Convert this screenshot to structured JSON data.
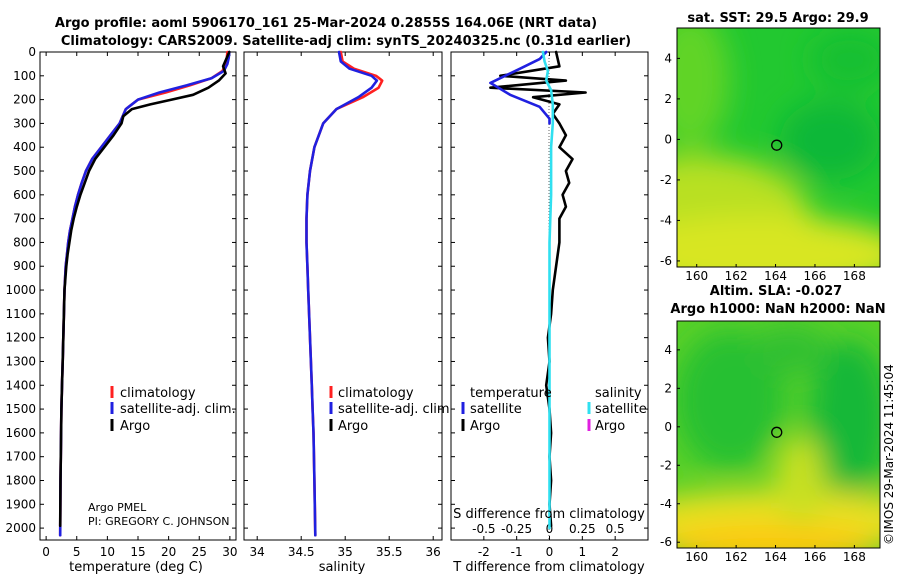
{
  "titles": {
    "line1": "Argo profile: aoml 5906170_161 25-Mar-2024 0.2855S 164.06E (NRT data)",
    "line2": "Climatology: CARS2009. Satellite-adj clim: synTS_20240325.nc (0.31d earlier)",
    "sst": "sat. SST: 29.5 Argo: 29.9",
    "sla1": "Altim. SLA: -0.027",
    "sla2": "Argo h1000: NaN h2000: NaN"
  },
  "credit": "©IMOS 29-Mar-2024 11:45:04",
  "pi_note": {
    "line1": "Argo PMEL",
    "line2": "PI: GREGORY C. JOHNSON"
  },
  "colors": {
    "climatology": "#ff2020",
    "satellite_adj": "#2020e0",
    "argo": "#000000",
    "sat_diff_cyan": "#30e0f0",
    "sat_diff_magenta": "#e020e0",
    "map_green": "#10c030",
    "map_yellow": "#e0e020",
    "map_orange": "#ffc000"
  },
  "legends": {
    "temperature_panel": [
      "climatology",
      "satellite-adj. clim.",
      "Argo"
    ],
    "salinity_panel": [
      "climatology",
      "satellite-adj. clim.",
      "Argo"
    ],
    "diff_panel": {
      "temp_header": "temperature",
      "sal_header": "salinity",
      "temp_items": [
        "satellite",
        "Argo"
      ],
      "sal_items": [
        "satellite",
        "Argo"
      ]
    }
  },
  "chart_data": [
    {
      "type": "line",
      "id": "temperature",
      "xlabel": "temperature (deg C)",
      "ylabel": "",
      "xlim": [
        -1,
        31
      ],
      "ylim": [
        2050,
        0
      ],
      "xticks": [
        0,
        5,
        10,
        15,
        20,
        25,
        30
      ],
      "yticks": [
        0,
        100,
        200,
        300,
        400,
        500,
        600,
        700,
        800,
        900,
        1000,
        1100,
        1200,
        1300,
        1400,
        1500,
        1600,
        1700,
        1800,
        1900,
        2000
      ],
      "series": [
        {
          "name": "climatology",
          "color": "#ff2020",
          "x": [
            29.6,
            29.5,
            29.3,
            28.8,
            27.0,
            23.5,
            19.5,
            15.0,
            13.0,
            12.0,
            10.5,
            9.0,
            7.5,
            6.5,
            5.8,
            5.2,
            4.7,
            4.3,
            3.9,
            3.6,
            3.4,
            3.2,
            3.0,
            2.9,
            2.8,
            2.7,
            2.6,
            2.5,
            2.45,
            2.4,
            2.35,
            2.3
          ],
          "depth": [
            0,
            25,
            50,
            80,
            110,
            140,
            170,
            200,
            240,
            300,
            350,
            400,
            450,
            500,
            550,
            600,
            650,
            700,
            750,
            800,
            850,
            900,
            1000,
            1100,
            1200,
            1300,
            1400,
            1500,
            1600,
            1700,
            1800,
            2030
          ]
        },
        {
          "name": "satellite-adj. clim.",
          "color": "#2020e0",
          "x": [
            29.9,
            29.8,
            29.6,
            29.0,
            27.0,
            23.0,
            18.5,
            15.0,
            13.0,
            12.0,
            10.5,
            9.0,
            7.5,
            6.5,
            5.8,
            5.2,
            4.7,
            4.3,
            3.9,
            3.6,
            3.4,
            3.2,
            3.0,
            2.9,
            2.8,
            2.7,
            2.6,
            2.5,
            2.45,
            2.4,
            2.35,
            2.3
          ],
          "depth": [
            0,
            25,
            50,
            80,
            110,
            140,
            170,
            200,
            240,
            300,
            350,
            400,
            450,
            500,
            550,
            600,
            650,
            700,
            750,
            800,
            850,
            900,
            1000,
            1100,
            1200,
            1300,
            1400,
            1500,
            1600,
            1700,
            1800,
            2030
          ]
        },
        {
          "name": "Argo",
          "color": "#000000",
          "x": [
            29.9,
            29.4,
            28.9,
            29.3,
            28.2,
            26.5,
            24.0,
            20.5,
            17.0,
            14.0,
            12.6,
            12.3,
            11.0,
            9.5,
            8.0,
            7.0,
            6.3,
            5.6,
            5.0,
            4.5,
            4.1,
            3.8,
            3.5,
            3.3,
            3.0,
            2.9,
            2.8,
            2.7,
            2.6,
            2.5,
            2.45,
            2.4,
            2.35,
            2.3
          ],
          "depth": [
            0,
            30,
            60,
            90,
            120,
            150,
            180,
            200,
            220,
            240,
            270,
            300,
            350,
            400,
            450,
            500,
            550,
            600,
            650,
            700,
            750,
            800,
            850,
            900,
            1000,
            1100,
            1200,
            1300,
            1400,
            1500,
            1600,
            1700,
            1800,
            1990
          ]
        }
      ]
    },
    {
      "type": "line",
      "id": "salinity",
      "xlabel": "salinity",
      "ylabel": "",
      "xlim": [
        33.85,
        36.1
      ],
      "ylim": [
        2050,
        0
      ],
      "xticks": [
        34,
        34.5,
        35,
        35.5,
        36
      ],
      "series": [
        {
          "name": "climatology",
          "color": "#ff2020",
          "x": [
            34.95,
            34.97,
            35.1,
            35.35,
            35.42,
            35.38,
            35.2,
            34.9,
            34.75,
            34.65,
            34.6,
            34.57,
            34.56,
            34.56,
            34.57,
            34.58,
            34.59,
            34.6,
            34.61,
            34.62,
            34.63,
            34.64,
            34.65,
            34.66
          ],
          "depth": [
            0,
            40,
            70,
            100,
            120,
            150,
            190,
            240,
            300,
            400,
            500,
            600,
            700,
            800,
            900,
            1000,
            1100,
            1200,
            1300,
            1400,
            1500,
            1600,
            1800,
            2030
          ]
        },
        {
          "name": "satellite-adj. clim.",
          "color": "#2020e0",
          "x": [
            34.93,
            34.95,
            35.05,
            35.3,
            35.36,
            35.3,
            35.15,
            34.9,
            34.75,
            34.65,
            34.6,
            34.57,
            34.56,
            34.56,
            34.57,
            34.58,
            34.59,
            34.6,
            34.61,
            34.62,
            34.63,
            34.64,
            34.65,
            34.66
          ],
          "depth": [
            0,
            40,
            70,
            100,
            120,
            150,
            190,
            240,
            300,
            400,
            500,
            600,
            700,
            800,
            900,
            1000,
            1100,
            1200,
            1300,
            1400,
            1500,
            1600,
            1800,
            2030
          ]
        }
      ]
    },
    {
      "type": "line",
      "id": "difference",
      "xlabel": "T difference from climatology",
      "top_label": "S difference from climatology",
      "xlim": [
        -3,
        3
      ],
      "ylim": [
        2050,
        0
      ],
      "xticks": [
        -2,
        -1,
        0,
        1,
        2
      ],
      "s_xticks": [
        "-0.5",
        "-0.25",
        "0",
        "0.25",
        "0.5"
      ],
      "series": [
        {
          "name": "temperature Argo",
          "color": "#000000",
          "x": [
            0.2,
            0.3,
            -1.5,
            0.5,
            -1.8,
            1.1,
            -0.5,
            0.3,
            0.1,
            0.3,
            0.5,
            0.3,
            0.7,
            0.5,
            0.6,
            0.4,
            0.5,
            0.3,
            0.3,
            0.2,
            0.1,
            0.05,
            -0.05,
            0.0,
            -0.1,
            0.0,
            0.05,
            0.0,
            0.05,
            0.0,
            0.05
          ],
          "depth": [
            0,
            60,
            100,
            120,
            150,
            170,
            190,
            220,
            260,
            300,
            350,
            400,
            450,
            500,
            550,
            600,
            650,
            700,
            800,
            900,
            1000,
            1100,
            1200,
            1300,
            1400,
            1500,
            1600,
            1700,
            1800,
            1900,
            1990
          ]
        },
        {
          "name": "temperature satellite",
          "color": "#2020e0",
          "x": [
            -0.1,
            -0.3,
            -0.9,
            -1.8,
            -1.2,
            -0.3,
            0.0,
            0.0
          ],
          "depth": [
            0,
            30,
            70,
            130,
            180,
            230,
            280,
            300
          ]
        },
        {
          "name": "salinity satellite",
          "color": "#30e0f0",
          "x": [
            -0.2,
            -0.15,
            -0.05,
            -0.1,
            0.05,
            0.1,
            0.1,
            0.05,
            0.05,
            0.0,
            0.0,
            0.0,
            0.0,
            0.0
          ],
          "depth": [
            0,
            40,
            80,
            120,
            160,
            220,
            300,
            400,
            600,
            800,
            1000,
            1400,
            1800,
            2000
          ]
        }
      ]
    },
    {
      "type": "heatmap",
      "id": "sst_map",
      "title": "sat. SST: 29.5 Argo: 29.9",
      "xlim": [
        159,
        169.3
      ],
      "ylim": [
        -6.3,
        5.5
      ],
      "xticks": [
        160,
        162,
        164,
        166,
        168
      ],
      "yticks": [
        -6,
        -4,
        -2,
        0,
        2,
        4
      ],
      "marker": {
        "lon": 164.06,
        "lat": -0.2855
      }
    },
    {
      "type": "heatmap",
      "id": "sla_map",
      "title": "Altim. SLA: -0.027",
      "xlim": [
        159,
        169.3
      ],
      "ylim": [
        -6.3,
        5.5
      ],
      "xticks": [
        160,
        162,
        164,
        166,
        168
      ],
      "yticks": [
        -6,
        -4,
        -2,
        0,
        2,
        4
      ],
      "marker": {
        "lon": 164.06,
        "lat": -0.2855
      }
    }
  ]
}
